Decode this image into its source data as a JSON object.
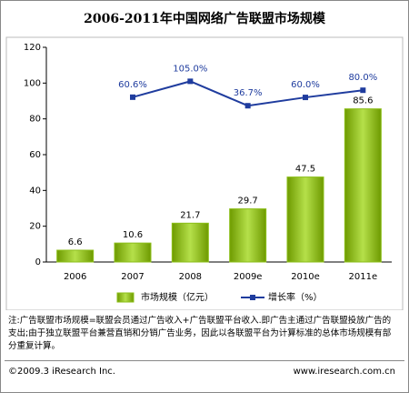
{
  "chart_data": {
    "type": "bar-line",
    "title": "2006-2011年中国网络广告联盟市场规模",
    "categories": [
      "2006",
      "2007",
      "2008",
      "2009e",
      "2010e",
      "2011e"
    ],
    "series": [
      {
        "name": "市场规模（亿元）",
        "type": "bar",
        "color": "#8cbf1a",
        "values": [
          6.6,
          10.6,
          21.7,
          29.7,
          47.5,
          85.6
        ]
      },
      {
        "name": "增长率（%）",
        "type": "line",
        "axis": "y2",
        "color": "#1f3c9e",
        "values": [
          null,
          60.6,
          105.0,
          36.7,
          60.0,
          80.0
        ],
        "value_labels": [
          null,
          "60.6%",
          "105.0%",
          "36.7%",
          "60.0%",
          "80.0%"
        ]
      }
    ],
    "ylim": [
      0,
      120
    ],
    "yticks": [
      0,
      20,
      40,
      60,
      80,
      100,
      120
    ],
    "y2lim": [
      -400,
      200
    ],
    "grid": false,
    "note": "注:广告联盟市场规模=联盟会员通过广告收入+广告联盟平台收入.即广告主通过广告联盟投放广告的支出;由于独立联盟平台兼营直销和分销广告业务，因此以各联盟平台为计算标准的总体市场规模有部分重复计算。",
    "source": "©2009.3 iResearch Inc.",
    "website": "www.iresearch.com.cn"
  }
}
